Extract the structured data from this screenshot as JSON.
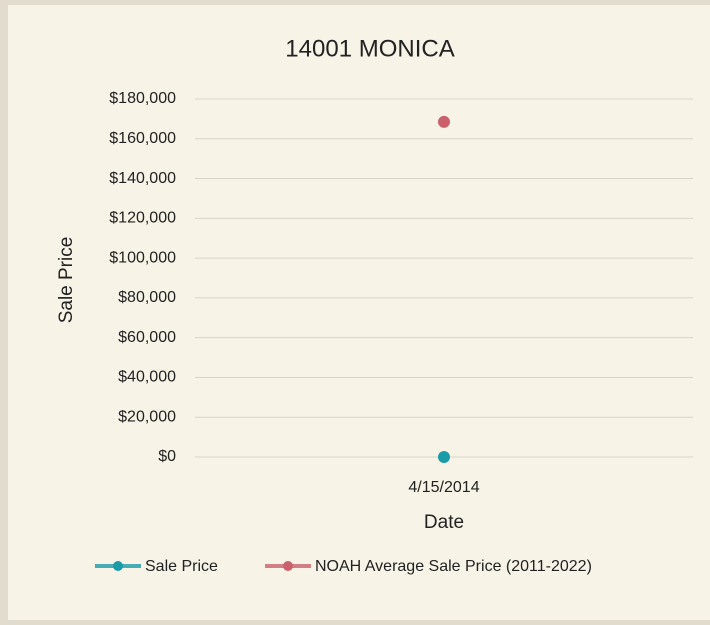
{
  "chart_data": {
    "type": "line",
    "title": "14001 MONICA",
    "x_label": "Date",
    "y_label": "Sale Price",
    "categories": [
      "4/15/2014"
    ],
    "series": [
      {
        "name": "Sale Price",
        "color": "#1a9ba8",
        "values": [
          0
        ]
      },
      {
        "name": "NOAH Average Sale Price (2011-2022)",
        "color": "#c9606b",
        "values": [
          168500
        ]
      }
    ],
    "ylim": [
      0,
      180000
    ],
    "yticks": [
      {
        "value": 0,
        "label": "$0"
      },
      {
        "value": 20000,
        "label": "$20,000"
      },
      {
        "value": 40000,
        "label": "$40,000"
      },
      {
        "value": 60000,
        "label": "$60,000"
      },
      {
        "value": 80000,
        "label": "$80,000"
      },
      {
        "value": 100000,
        "label": "$100,000"
      },
      {
        "value": 120000,
        "label": "$120,000"
      },
      {
        "value": 140000,
        "label": "$140,000"
      },
      {
        "value": 160000,
        "label": "$160,000"
      },
      {
        "value": 180000,
        "label": "$180,000"
      }
    ],
    "grid": true,
    "legend": "bottom"
  }
}
